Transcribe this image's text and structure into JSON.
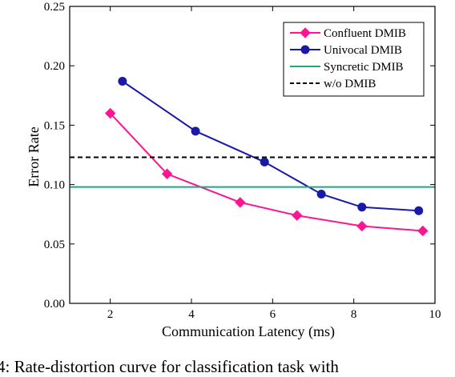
{
  "chart_data": {
    "type": "line",
    "xlabel": "Communication Latency (ms)",
    "ylabel": "Error Rate",
    "xlim": [
      1,
      10
    ],
    "ylim": [
      0,
      0.25
    ],
    "xticks": [
      2,
      4,
      6,
      8,
      10
    ],
    "xtick_labels": [
      "2",
      "4",
      "6",
      "8",
      "10"
    ],
    "yticks": [
      0,
      0.05,
      0.1,
      0.15,
      0.2,
      0.25
    ],
    "ytick_labels": [
      "0.00",
      "0.05",
      "0.10",
      "0.15",
      "0.20",
      "0.25"
    ],
    "grid": false,
    "legend_position": "top-right",
    "series": [
      {
        "name": "Confluent DMIB",
        "color": "#ff1493",
        "marker": "diamond",
        "line_style": "solid",
        "x": [
          2.0,
          3.4,
          5.2,
          6.6,
          8.2,
          9.7
        ],
        "y": [
          0.16,
          0.109,
          0.085,
          0.074,
          0.065,
          0.061
        ]
      },
      {
        "name": "Univocal DMIB",
        "color": "#1a1aa8",
        "marker": "circle",
        "line_style": "solid",
        "x": [
          2.3,
          4.1,
          5.8,
          7.2,
          8.2,
          9.6
        ],
        "y": [
          0.187,
          0.145,
          0.119,
          0.092,
          0.081,
          0.078
        ]
      },
      {
        "name": "Syncretic DMIB",
        "color": "#20a880",
        "marker": "none",
        "line_style": "solid",
        "constant_y": 0.098
      },
      {
        "name": "w/o DMIB",
        "color": "#000000",
        "marker": "none",
        "line_style": "dashed",
        "constant_y": 0.123
      }
    ]
  },
  "caption": "4: Rate-distortion curve for classification task with"
}
